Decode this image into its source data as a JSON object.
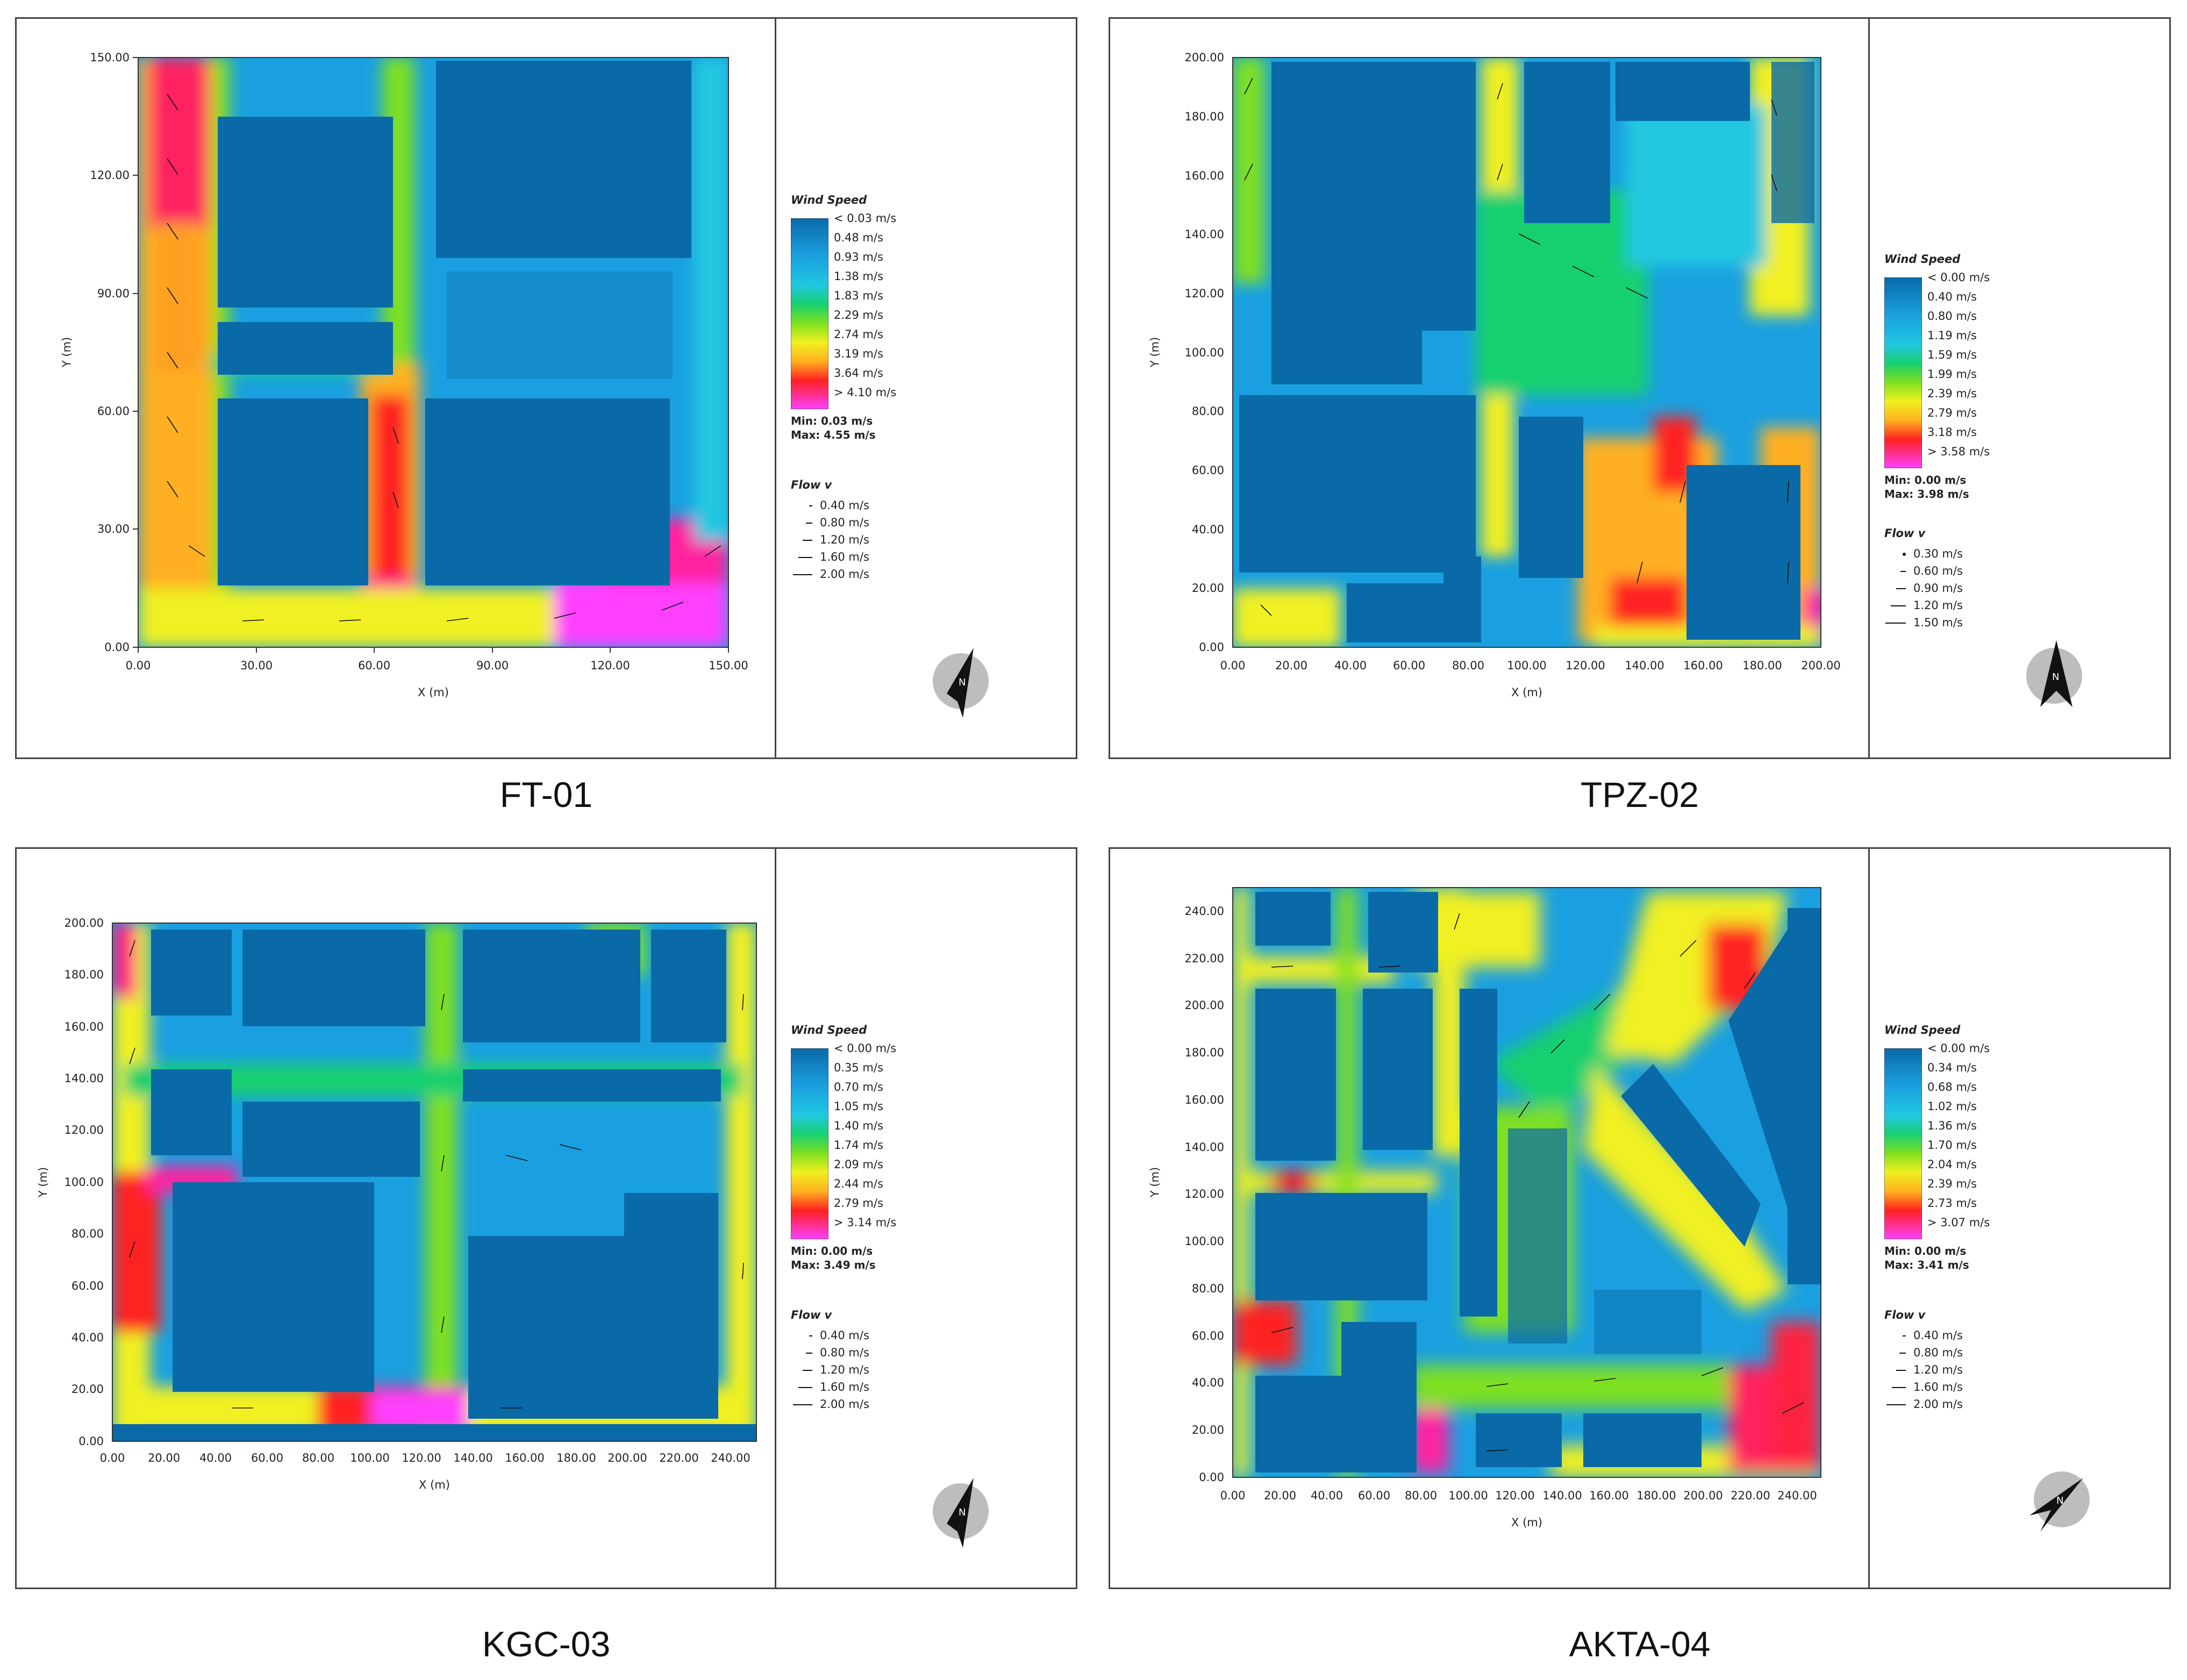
{
  "figures": [
    {
      "id": "ft01",
      "caption": "FT-01",
      "xlabel": "X (m)",
      "ylabel": "Y (m)",
      "xticks": [
        "0.00",
        "30.00",
        "60.00",
        "90.00",
        "120.00",
        "150.00"
      ],
      "yticks": [
        "0.00",
        "30.00",
        "60.00",
        "90.00",
        "120.00",
        "150.00"
      ],
      "legend": {
        "title": "Wind Speed",
        "labels": [
          "< 0.03 m/s",
          "0.48  m/s",
          "0.93  m/s",
          "1.38  m/s",
          "1.83  m/s",
          "2.29  m/s",
          "2.74  m/s",
          "3.19  m/s",
          "3.64  m/s",
          "> 4.10 m/s"
        ],
        "min": "Min: 0.03 m/s",
        "max": "Max: 4.55 m/s",
        "flow_title": "Flow v",
        "flow": [
          "0.40  m/s",
          "0.80  m/s",
          "1.20  m/s",
          "1.60  m/s",
          "2.00  m/s"
        ]
      }
    },
    {
      "id": "tpz02",
      "caption": "TPZ-02",
      "xlabel": "X (m)",
      "ylabel": "Y (m)",
      "xticks": [
        "0.00",
        "20.00",
        "40.00",
        "60.00",
        "80.00",
        "100.00",
        "120.00",
        "140.00",
        "160.00",
        "180.00",
        "200.00"
      ],
      "yticks": [
        "0.00",
        "20.00",
        "40.00",
        "60.00",
        "80.00",
        "100.00",
        "120.00",
        "140.00",
        "160.00",
        "180.00",
        "200.00"
      ],
      "legend": {
        "title": "Wind Speed",
        "labels": [
          "< 0.00 m/s",
          "0.40  m/s",
          "0.80  m/s",
          "1.19  m/s",
          "1.59  m/s",
          "1.99  m/s",
          "2.39  m/s",
          "2.79  m/s",
          "3.18  m/s",
          "> 3.58 m/s"
        ],
        "min": "Min: 0.00 m/s",
        "max": "Max: 3.98 m/s",
        "flow_title": "Flow v",
        "flow": [
          "0.30  m/s",
          "0.60  m/s",
          "0.90  m/s",
          "1.20  m/s",
          "1.50  m/s"
        ]
      }
    },
    {
      "id": "kgc03",
      "caption": "KGC-03",
      "xlabel": "X (m)",
      "ylabel": "Y (m)",
      "xticks": [
        "0.00",
        "20.00",
        "40.00",
        "60.00",
        "80.00",
        "100.00",
        "120.00",
        "140.00",
        "160.00",
        "180.00",
        "200.00",
        "220.00",
        "240.00"
      ],
      "yticks": [
        "0.00",
        "20.00",
        "40.00",
        "60.00",
        "80.00",
        "100.00",
        "120.00",
        "140.00",
        "160.00",
        "180.00",
        "200.00"
      ],
      "legend": {
        "title": "Wind Speed",
        "labels": [
          "< 0.00 m/s",
          "0.35  m/s",
          "0.70  m/s",
          "1.05  m/s",
          "1.40  m/s",
          "1.74  m/s",
          "2.09  m/s",
          "2.44  m/s",
          "2.79  m/s",
          "> 3.14 m/s"
        ],
        "min": "Min: 0.00 m/s",
        "max": "Max: 3.49 m/s",
        "flow_title": "Flow v",
        "flow": [
          "0.40  m/s",
          "0.80  m/s",
          "1.20  m/s",
          "1.60  m/s",
          "2.00  m/s"
        ]
      }
    },
    {
      "id": "akta04",
      "caption": "AKTA-04",
      "xlabel": "X (m)",
      "ylabel": "Y (m)",
      "xticks": [
        "0.00",
        "20.00",
        "40.00",
        "60.00",
        "80.00",
        "100.00",
        "120.00",
        "140.00",
        "160.00",
        "180.00",
        "200.00",
        "220.00",
        "240.00"
      ],
      "yticks": [
        "0.00",
        "20.00",
        "40.00",
        "60.00",
        "80.00",
        "100.00",
        "120.00",
        "140.00",
        "160.00",
        "180.00",
        "200.00",
        "220.00",
        "240.00"
      ],
      "legend": {
        "title": "Wind Speed",
        "labels": [
          "< 0.00 m/s",
          "0.34  m/s",
          "0.68  m/s",
          "1.02  m/s",
          "1.36  m/s",
          "1.70  m/s",
          "2.04  m/s",
          "2.39  m/s",
          "2.73  m/s",
          "> 3.07 m/s"
        ],
        "min": "Min: 0.00 m/s",
        "max": "Max: 3.41 m/s",
        "flow_title": "Flow v",
        "flow": [
          "0.40  m/s",
          "0.80  m/s",
          "1.20  m/s",
          "1.60  m/s",
          "2.00  m/s"
        ]
      }
    }
  ],
  "colors": {
    "ramp": [
      "#0a6aa8",
      "#1aa0e0",
      "#20c8e0",
      "#18d070",
      "#7ee020",
      "#f0f020",
      "#ffb020",
      "#ff2020",
      "#ff20a0",
      "#ff40ff"
    ],
    "building": "#0a6aa8"
  },
  "compass_letter": "N",
  "chart_data": [
    {
      "type": "heatmap",
      "title": "FT-01",
      "xlabel": "X (m)",
      "ylabel": "Y (m)",
      "xlim": [
        0,
        150
      ],
      "ylim": [
        0,
        150
      ],
      "colorbar": {
        "title": "Wind Speed",
        "levels": [
          0.03,
          0.48,
          0.93,
          1.38,
          1.83,
          2.29,
          2.74,
          3.19,
          3.64,
          4.1
        ],
        "min": 0.03,
        "max": 4.55,
        "unit": "m/s"
      },
      "flow_vectors": [
        0.4,
        0.8,
        1.2,
        1.6,
        2.0
      ]
    },
    {
      "type": "heatmap",
      "title": "TPZ-02",
      "xlabel": "X (m)",
      "ylabel": "Y (m)",
      "xlim": [
        0,
        200
      ],
      "ylim": [
        0,
        200
      ],
      "colorbar": {
        "title": "Wind Speed",
        "levels": [
          0.0,
          0.4,
          0.8,
          1.19,
          1.59,
          1.99,
          2.39,
          2.79,
          3.18,
          3.58
        ],
        "min": 0.0,
        "max": 3.98,
        "unit": "m/s"
      },
      "flow_vectors": [
        0.3,
        0.6,
        0.9,
        1.2,
        1.5
      ]
    },
    {
      "type": "heatmap",
      "title": "KGC-03",
      "xlabel": "X (m)",
      "ylabel": "Y (m)",
      "xlim": [
        0,
        250
      ],
      "ylim": [
        0,
        200
      ],
      "colorbar": {
        "title": "Wind Speed",
        "levels": [
          0.0,
          0.35,
          0.7,
          1.05,
          1.4,
          1.74,
          2.09,
          2.44,
          2.79,
          3.14
        ],
        "min": 0.0,
        "max": 3.49,
        "unit": "m/s"
      },
      "flow_vectors": [
        0.4,
        0.8,
        1.2,
        1.6,
        2.0
      ]
    },
    {
      "type": "heatmap",
      "title": "AKTA-04",
      "xlabel": "X (m)",
      "ylabel": "Y (m)",
      "xlim": [
        0,
        250
      ],
      "ylim": [
        0,
        250
      ],
      "colorbar": {
        "title": "Wind Speed",
        "levels": [
          0.0,
          0.34,
          0.68,
          1.02,
          1.36,
          1.7,
          2.04,
          2.39,
          2.73,
          3.07
        ],
        "min": 0.0,
        "max": 3.41,
        "unit": "m/s"
      },
      "flow_vectors": [
        0.4,
        0.8,
        1.2,
        1.6,
        2.0
      ]
    }
  ]
}
